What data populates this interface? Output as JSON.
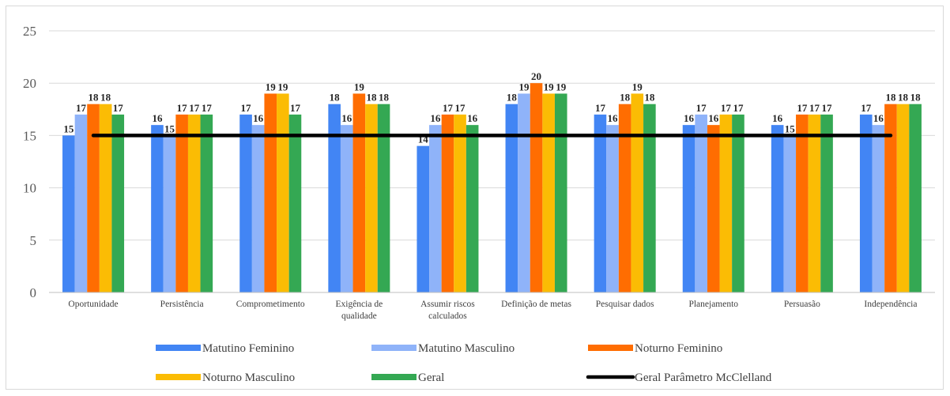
{
  "chart_data": {
    "type": "bar",
    "categories": [
      [
        "Oportunidade"
      ],
      [
        "Persistência"
      ],
      [
        "Comprometimento"
      ],
      [
        "Exigência de",
        "qualidade"
      ],
      [
        "Assumir riscos",
        "calculados"
      ],
      [
        "Definição de metas"
      ],
      [
        "Pesquisar dados"
      ],
      [
        "Planejamento"
      ],
      [
        "Persuasão"
      ],
      [
        "Independência"
      ]
    ],
    "series": [
      {
        "name": "Matutino Feminino",
        "color": "#4285f4",
        "values": [
          15,
          16,
          17,
          18,
          14,
          18,
          17,
          16,
          16,
          17
        ]
      },
      {
        "name": "Matutino Masculino",
        "color": "#8fb3f9",
        "values": [
          17,
          15,
          16,
          16,
          16,
          19,
          16,
          17,
          15,
          16
        ]
      },
      {
        "name": "Noturno Feminino",
        "color": "#ff6d01",
        "values": [
          18,
          17,
          19,
          19,
          17,
          20,
          18,
          16,
          17,
          18
        ]
      },
      {
        "name": "Noturno Masculino",
        "color": "#fbbc04",
        "values": [
          18,
          17,
          19,
          18,
          17,
          19,
          19,
          17,
          17,
          18
        ]
      },
      {
        "name": "Geral",
        "color": "#34a853",
        "values": [
          17,
          17,
          17,
          18,
          16,
          19,
          18,
          17,
          17,
          18
        ]
      }
    ],
    "reference_line": {
      "name": "Geral Parâmetro McClelland",
      "color": "#000000",
      "value": 15
    },
    "ylim": [
      0,
      25
    ],
    "yticks": [
      "0",
      "5",
      "10",
      "15",
      "20",
      "25"
    ],
    "grid": true,
    "legend_position": "bottom"
  }
}
